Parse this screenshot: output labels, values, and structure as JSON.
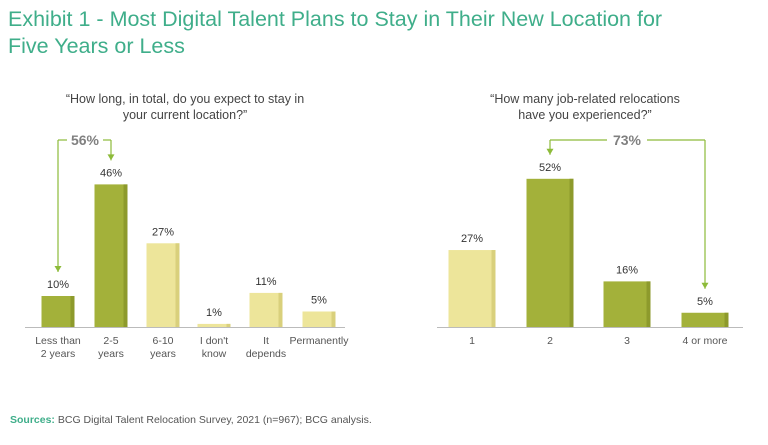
{
  "title": {
    "line1": "Exhibit 1 - Most Digital Talent Plans to Stay in Their New Location for",
    "line2": "Five Years or Less"
  },
  "colors": {
    "title": "#3fae8a",
    "dark_bar": "#a3b13a",
    "dark_bar_edge": "#8d9a2c",
    "light_bar": "#ede59a",
    "light_bar_edge": "#d9d07c",
    "bracket": "#8dbb3a",
    "highlight_label": "#808080"
  },
  "chart_data": [
    {
      "type": "bar",
      "question_line1": "“How long, in total, do you expect to stay in",
      "question_line2": "your current location?”",
      "categories": [
        {
          "line1": "Less than",
          "line2": "2 years"
        },
        {
          "line1": "2-5",
          "line2": "years"
        },
        {
          "line1": "6-10",
          "line2": "years"
        },
        {
          "line1": "I don't",
          "line2": "know"
        },
        {
          "line1": "It",
          "line2": "depends"
        },
        {
          "line1": "Permanently",
          "line2": ""
        }
      ],
      "values": [
        10,
        46,
        27,
        1,
        11,
        5
      ],
      "value_labels": [
        "10%",
        "46%",
        "27%",
        "1%",
        "11%",
        "5%"
      ],
      "highlighted": [
        true,
        true,
        false,
        false,
        false,
        false
      ],
      "bracket_label": "56%",
      "unit": "%"
    },
    {
      "type": "bar",
      "question_line1": "“How many job-related relocations",
      "question_line2": "have you experienced?”",
      "categories": [
        {
          "line1": "1",
          "line2": ""
        },
        {
          "line1": "2",
          "line2": ""
        },
        {
          "line1": "3",
          "line2": ""
        },
        {
          "line1": "4 or more",
          "line2": ""
        }
      ],
      "values": [
        27,
        52,
        16,
        5
      ],
      "value_labels": [
        "27%",
        "52%",
        "16%",
        "5%"
      ],
      "highlighted": [
        false,
        true,
        true,
        true
      ],
      "bracket_label": "73%",
      "unit": "%"
    }
  ],
  "source": {
    "label": "Sources:",
    "text": " BCG Digital Talent Relocation Survey, 2021 (n=967); BCG analysis."
  }
}
